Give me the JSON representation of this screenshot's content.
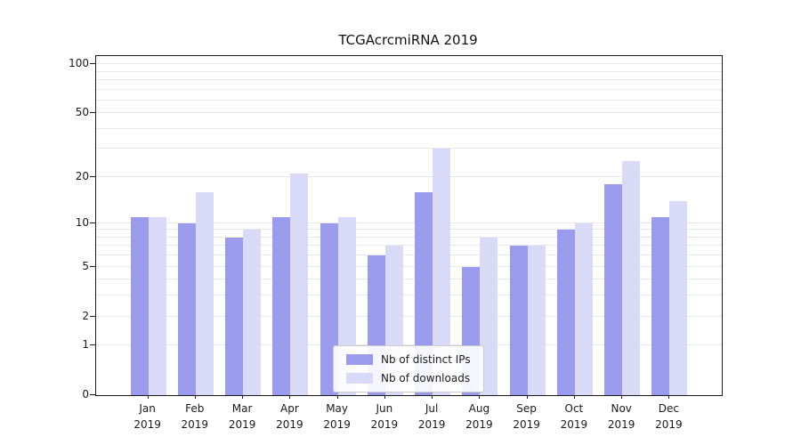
{
  "chart_data": {
    "type": "bar",
    "title": "TCGAcrcmiRNA 2019",
    "xlabel": "",
    "ylabel": "",
    "categories": [
      "Jan 2019",
      "Feb 2019",
      "Mar 2019",
      "Apr 2019",
      "May 2019",
      "Jun 2019",
      "Jul 2019",
      "Aug 2019",
      "Sep 2019",
      "Oct 2019",
      "Nov 2019",
      "Dec 2019"
    ],
    "series": [
      {
        "name": "Nb of distinct IPs",
        "color": "#9b9bee",
        "values": [
          11,
          10,
          8,
          11,
          10,
          6,
          16,
          5,
          7,
          9,
          18,
          11
        ]
      },
      {
        "name": "Nb of downloads",
        "color": "#d9d9f8",
        "values": [
          11,
          16,
          9,
          21,
          11,
          7,
          30,
          8,
          7,
          10,
          25,
          14
        ]
      }
    ],
    "yscale": "log1p",
    "ylim": [
      0,
      112
    ],
    "yticks": [
      100,
      50,
      20,
      10,
      5,
      2,
      1,
      0
    ],
    "grid_values": [
      1,
      2,
      3,
      4,
      5,
      6,
      7,
      8,
      9,
      10,
      20,
      30,
      40,
      50,
      60,
      70,
      80,
      90,
      100
    ],
    "grid": true,
    "legend_position": "lower center"
  }
}
